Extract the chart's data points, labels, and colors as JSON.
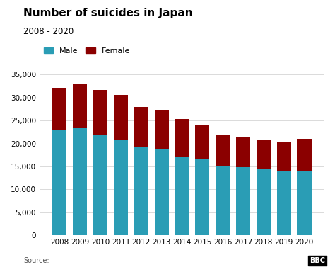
{
  "title": "Number of suicides in Japan",
  "subtitle": "2008 - 2020",
  "years": [
    2008,
    2009,
    2010,
    2011,
    2012,
    2013,
    2014,
    2015,
    2016,
    2017,
    2018,
    2019,
    2020
  ],
  "male": [
    22800,
    23400,
    22000,
    20900,
    19200,
    18800,
    17100,
    16600,
    15000,
    14800,
    14300,
    14000,
    13900
  ],
  "female": [
    9400,
    9500,
    9600,
    9700,
    8700,
    8600,
    8200,
    7300,
    6800,
    6500,
    6500,
    6200,
    7100
  ],
  "male_color": "#2a9db5",
  "female_color": "#8b0000",
  "ylim": [
    0,
    37000
  ],
  "yticks": [
    0,
    5000,
    10000,
    15000,
    20000,
    25000,
    30000,
    35000
  ],
  "source_text": "Source:",
  "bbc_text": "BBC",
  "background_color": "#ffffff",
  "bar_width": 0.7
}
